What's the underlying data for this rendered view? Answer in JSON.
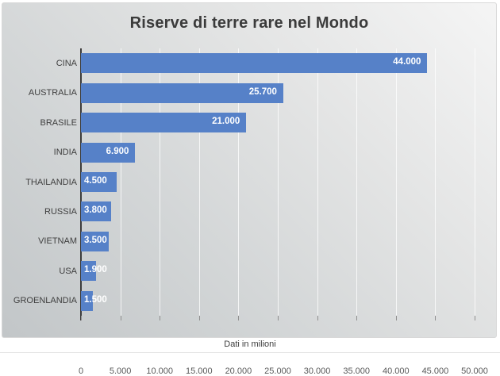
{
  "chart_data": {
    "type": "bar",
    "orientation": "horizontal",
    "title": "Riserve di terre rare nel Mondo",
    "caption": "Dati in milioni",
    "categories": [
      "CINA",
      "AUSTRALIA",
      "BRASILE",
      "INDIA",
      "THAILANDIA",
      "RUSSIA",
      "VIETNAM",
      "USA",
      "GROENLANDIA"
    ],
    "values": [
      44000,
      25700,
      21000,
      6900,
      4500,
      3800,
      3500,
      1900,
      1500
    ],
    "value_labels": [
      "44.000",
      "25.700",
      "21.000",
      "6.900",
      "4.500",
      "3.800",
      "3.500",
      "1.900",
      "1.500"
    ],
    "x_tick_values": [
      0,
      5000,
      10000,
      15000,
      20000,
      25000,
      30000,
      35000,
      40000,
      45000,
      50000
    ],
    "x_tick_labels": [
      "0",
      "5.000",
      "10.000",
      "15.000",
      "20.000",
      "25.000",
      "30.000",
      "35.000",
      "40.000",
      "45.000",
      "50.000"
    ],
    "xlim": [
      0,
      50000
    ],
    "grid": true,
    "legend": false,
    "colors": {
      "bar": "#5681C8",
      "title_text": "#3b3b3b",
      "axis_text": "#595959",
      "value_label_text": "#ffffff",
      "background_light": "#f5f5f5",
      "background_dark": "#c2c6c8"
    }
  }
}
